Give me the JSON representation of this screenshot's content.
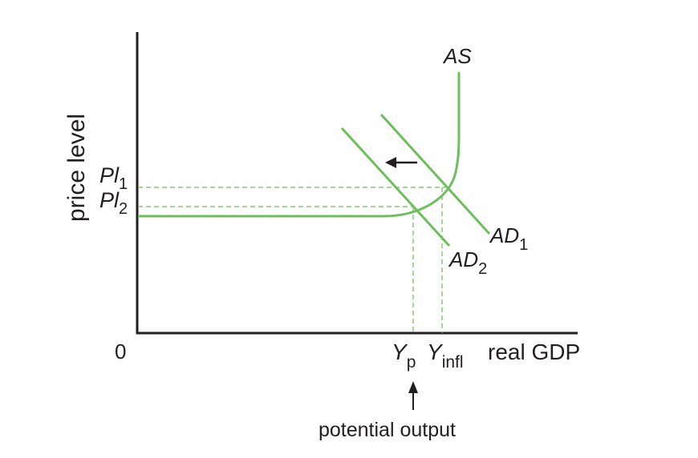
{
  "axes": {
    "y_label": "price level",
    "x_label": "real GDP",
    "origin": "0"
  },
  "price_levels": [
    {
      "base": "Pl",
      "sub": "1"
    },
    {
      "base": "Pl",
      "sub": "2"
    }
  ],
  "outputs": [
    {
      "base": "Y",
      "sub": "p"
    },
    {
      "base": "Y",
      "sub": "infl"
    }
  ],
  "curves": {
    "as": {
      "base": "AS"
    },
    "ad1": {
      "base": "AD",
      "sub": "1"
    },
    "ad2": {
      "base": "AD",
      "sub": "2"
    }
  },
  "annotation": "potential output",
  "colors": {
    "curve": "#6cbf5a",
    "guide": "#6cbf5a",
    "axis": "#231f20",
    "text": "#231f20"
  },
  "shift_arrow": "leftward-arrow"
}
